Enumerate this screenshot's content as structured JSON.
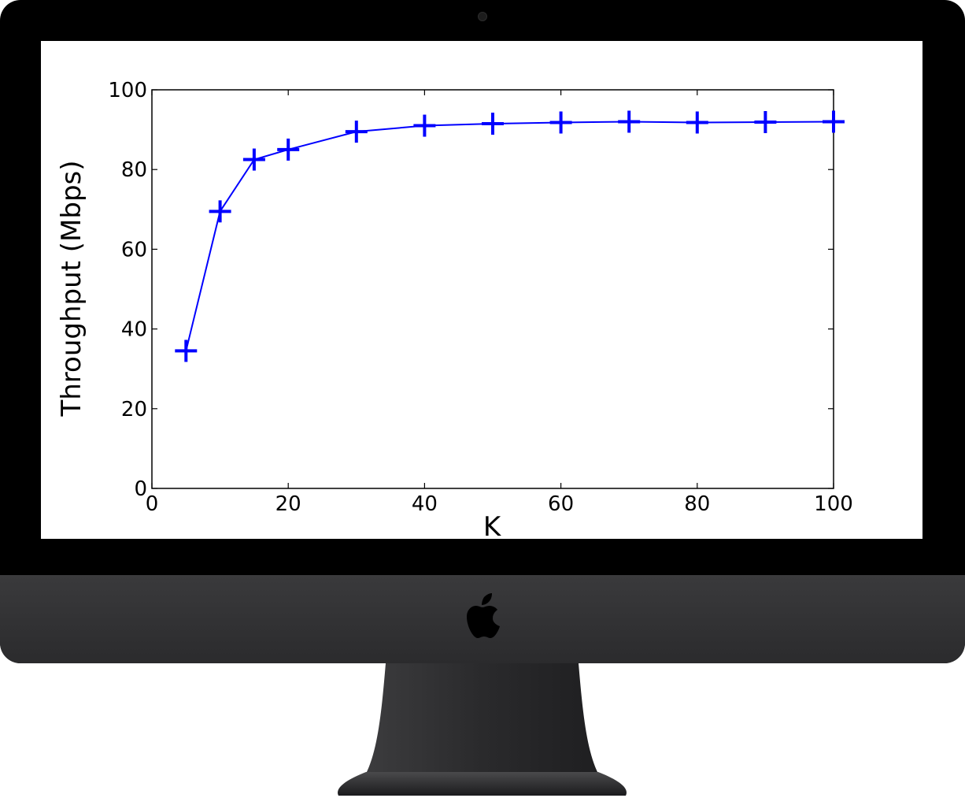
{
  "device": {
    "logo_icon": "apple-logo-icon"
  },
  "chart_data": {
    "type": "line",
    "xlabel": "K",
    "ylabel": "Throughput (Mbps)",
    "xlim": [
      0,
      100
    ],
    "ylim": [
      0,
      100
    ],
    "xticks": [
      0,
      20,
      40,
      60,
      80,
      100
    ],
    "yticks": [
      0,
      20,
      40,
      60,
      80,
      100
    ],
    "grid": false,
    "marker": "plus",
    "color": "#0000ff",
    "x": [
      5,
      10,
      15,
      20,
      30,
      40,
      50,
      60,
      70,
      80,
      90,
      100
    ],
    "y": [
      34.5,
      69.5,
      82.5,
      85,
      89.5,
      91,
      91.5,
      91.8,
      92,
      91.8,
      91.9,
      92
    ]
  }
}
